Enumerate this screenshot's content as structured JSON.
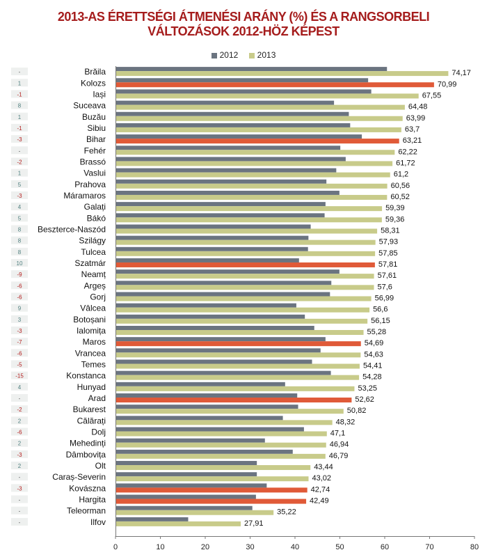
{
  "chart_data": {
    "type": "bar",
    "orientation": "horizontal",
    "title_line1": "2013-AS ÉRETTSÉGI ÁTMENÉSI ARÁNY (%) ÉS A RANGSORBELI",
    "title_line2": "VÁLTOZÁSOK 2012-HÖZ KÉPEST",
    "xlim": [
      0,
      80
    ],
    "xticks": [
      0,
      10,
      20,
      30,
      40,
      50,
      60,
      70,
      80
    ],
    "legend": [
      "2012",
      "2013"
    ],
    "colors": {
      "s2012": "#6b7480",
      "s2013": "#c8cb8a",
      "highlight": "#e05a38",
      "neg": "#b31b1b",
      "pos": "#4f7f7f",
      "neutral": "#555555",
      "title": "#a51c1c"
    },
    "categories": [
      "Brăila",
      "Kolozs",
      "Iași",
      "Suceava",
      "Buzău",
      "Sibiu",
      "Bihar",
      "Fehér",
      "Brassó",
      "Vaslui",
      "Prahova",
      "Máramaros",
      "Galați",
      "Bákó",
      "Beszterce-Naszód",
      "Szilágy",
      "Tulcea",
      "Szatmár",
      "Neamț",
      "Argeș",
      "Gorj",
      "Vâlcea",
      "Botoșani",
      "Ialomița",
      "Maros",
      "Vrancea",
      "Temes",
      "Konstanca",
      "Hunyad",
      "Arad",
      "Bukarest",
      "Călărați",
      "Dolj",
      "Mehedinți",
      "Dâmbovița",
      "Olt",
      "Caraș-Severin",
      "Kovászna",
      "Hargita",
      "Teleorman",
      "Ilfov"
    ],
    "rank_change": [
      "-",
      "1",
      "-1",
      "8",
      "1",
      "-1",
      "-3",
      "-",
      "-2",
      "1",
      "5",
      "-3",
      "4",
      "5",
      "8",
      "8",
      "8",
      "10",
      "-9",
      "-6",
      "-6",
      "9",
      "3",
      "-3",
      "-7",
      "-6",
      "-5",
      "-15",
      "4",
      "-",
      "-2",
      "2",
      "-6",
      "2",
      "-3",
      "2",
      "-",
      "-3",
      "-",
      "-",
      "-"
    ],
    "series": [
      {
        "name": "2012",
        "values": [
          60.5,
          56.3,
          57.0,
          48.7,
          52.0,
          52.3,
          54.9,
          50.1,
          51.3,
          49.2,
          47.0,
          49.9,
          46.8,
          46.6,
          43.5,
          43.0,
          42.9,
          40.9,
          49.9,
          48.1,
          47.8,
          40.3,
          42.2,
          44.3,
          46.8,
          45.7,
          43.8,
          48.0,
          37.8,
          40.5,
          40.7,
          37.3,
          42.0,
          33.3,
          39.5,
          31.5,
          31.5,
          33.7,
          31.3,
          30.5,
          16.2
        ]
      },
      {
        "name": "2013",
        "values": [
          74.17,
          70.99,
          67.55,
          64.48,
          63.99,
          63.7,
          63.21,
          62.22,
          61.72,
          61.2,
          60.56,
          60.52,
          59.39,
          59.36,
          58.31,
          57.93,
          57.85,
          57.81,
          57.61,
          57.6,
          56.99,
          56.6,
          56.15,
          55.28,
          54.69,
          54.63,
          54.41,
          54.28,
          53.25,
          52.62,
          50.82,
          48.32,
          47.1,
          46.94,
          46.79,
          43.44,
          43.02,
          42.74,
          42.49,
          35.22,
          27.91
        ]
      }
    ],
    "value_labels": [
      "74,17",
      "70,99",
      "67,55",
      "64,48",
      "63,99",
      "63,7",
      "63,21",
      "62,22",
      "61,72",
      "61,2",
      "60,56",
      "60,52",
      "59,39",
      "59,36",
      "58,31",
      "57,93",
      "57,85",
      "57,81",
      "57,61",
      "57,6",
      "56,99",
      "56,6",
      "56,15",
      "55,28",
      "54,69",
      "54,63",
      "54,41",
      "54,28",
      "53,25",
      "52,62",
      "50,82",
      "48,32",
      "47,1",
      "46,94",
      "46,79",
      "43,44",
      "43,02",
      "42,74",
      "42,49",
      "35,22",
      "27,91"
    ],
    "highlighted": [
      "Kolozs",
      "Bihar",
      "Szatmár",
      "Maros",
      "Arad",
      "Kovászna",
      "Hargita"
    ]
  }
}
